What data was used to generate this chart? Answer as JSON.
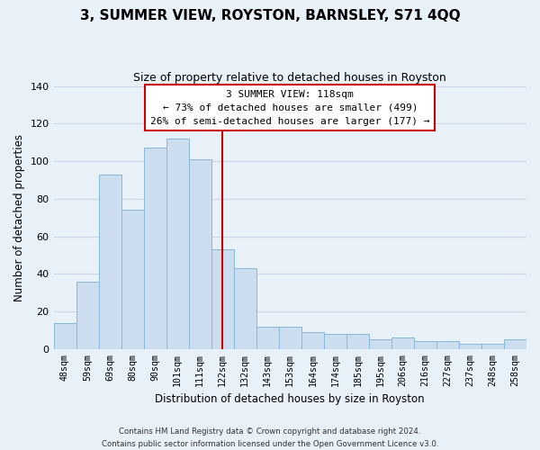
{
  "title": "3, SUMMER VIEW, ROYSTON, BARNSLEY, S71 4QQ",
  "subtitle": "Size of property relative to detached houses in Royston",
  "xlabel": "Distribution of detached houses by size in Royston",
  "ylabel": "Number of detached properties",
  "bar_color": "#ccddef",
  "bar_edge_color": "#88b8d8",
  "categories": [
    "48sqm",
    "59sqm",
    "69sqm",
    "80sqm",
    "90sqm",
    "101sqm",
    "111sqm",
    "122sqm",
    "132sqm",
    "143sqm",
    "153sqm",
    "164sqm",
    "174sqm",
    "185sqm",
    "195sqm",
    "206sqm",
    "216sqm",
    "227sqm",
    "237sqm",
    "248sqm",
    "258sqm"
  ],
  "values": [
    14,
    36,
    93,
    74,
    107,
    112,
    101,
    53,
    43,
    12,
    12,
    9,
    8,
    8,
    5,
    6,
    4,
    4,
    3,
    3,
    5
  ],
  "vline_index": 7,
  "vline_color": "#cc0000",
  "annotation_title": "3 SUMMER VIEW: 118sqm",
  "annotation_line1": "← 73% of detached houses are smaller (499)",
  "annotation_line2": "26% of semi-detached houses are larger (177) →",
  "annotation_box_color": "#ffffff",
  "annotation_box_edge": "#cc0000",
  "footer_line1": "Contains HM Land Registry data © Crown copyright and database right 2024.",
  "footer_line2": "Contains public sector information licensed under the Open Government Licence v3.0.",
  "ylim": [
    0,
    140
  ],
  "yticks": [
    0,
    20,
    40,
    60,
    80,
    100,
    120,
    140
  ],
  "grid_color": "#c8d8e8",
  "background_color": "#e8f0f8"
}
